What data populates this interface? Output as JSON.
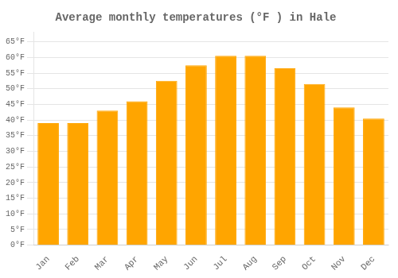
{
  "chart_data": {
    "type": "bar",
    "title": "Average monthly temperatures (°F ) in Hale",
    "categories": [
      "Jan",
      "Feb",
      "Mar",
      "Apr",
      "May",
      "Jun",
      "Jul",
      "Aug",
      "Sep",
      "Oct",
      "Nov",
      "Dec"
    ],
    "values": [
      39,
      39,
      43,
      46,
      52.5,
      57.5,
      60.5,
      60.5,
      56.5,
      51.5,
      44,
      40.5
    ],
    "color": "#FFA500",
    "ylim": [
      0,
      68
    ],
    "yticks": [
      {
        "value": 0,
        "label": "0°F"
      },
      {
        "value": 5,
        "label": "5°F"
      },
      {
        "value": 10,
        "label": "10°F"
      },
      {
        "value": 15,
        "label": "15°F"
      },
      {
        "value": 20,
        "label": "20°F"
      },
      {
        "value": 25,
        "label": "25°F"
      },
      {
        "value": 30,
        "label": "30°F"
      },
      {
        "value": 35,
        "label": "35°F"
      },
      {
        "value": 40,
        "label": "40°F"
      },
      {
        "value": 45,
        "label": "45°F"
      },
      {
        "value": 50,
        "label": "50°F"
      },
      {
        "value": 55,
        "label": "55°F"
      },
      {
        "value": 60,
        "label": "60°F"
      },
      {
        "value": 65,
        "label": "65°F"
      }
    ],
    "grid": true
  }
}
